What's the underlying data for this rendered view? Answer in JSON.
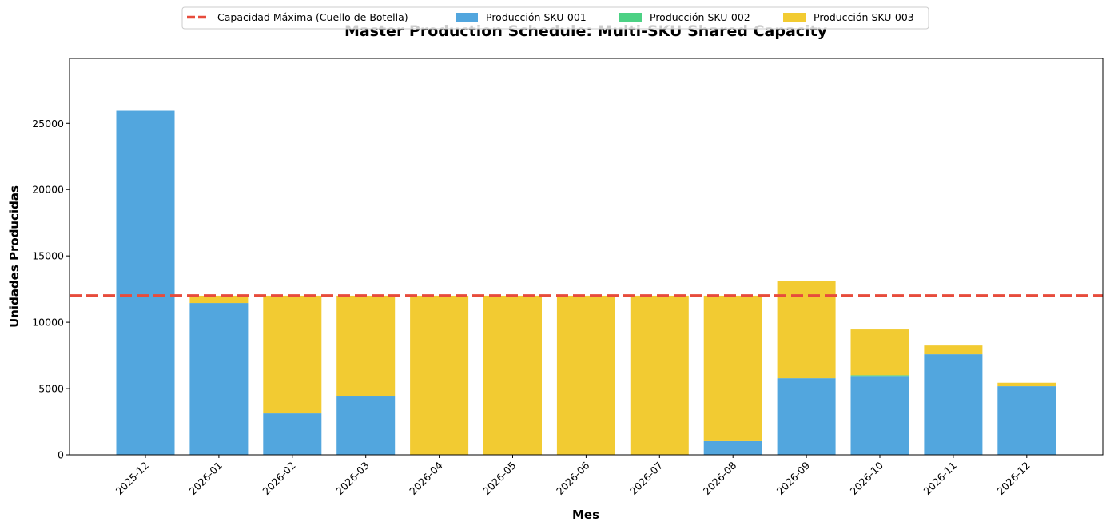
{
  "chart_data": {
    "type": "bar",
    "stacked": true,
    "title": "Master Production Schedule: Multi-SKU Shared Capacity",
    "xlabel": "Mes",
    "ylabel": "Unidades Producidas",
    "ylim": [
      0,
      29900
    ],
    "yticks": [
      0,
      5000,
      10000,
      15000,
      20000,
      25000
    ],
    "grid": false,
    "legend_position": "upper center (above plot)",
    "categories": [
      "2025-12",
      "2026-01",
      "2026-02",
      "2026-03",
      "2026-04",
      "2026-05",
      "2026-06",
      "2026-07",
      "2026-08",
      "2026-09",
      "2026-10",
      "2026-11",
      "2026-12"
    ],
    "series": [
      {
        "name": "Producción SKU-001",
        "color": "#52a6de",
        "values": [
          25950,
          11450,
          3130,
          4460,
          0,
          0,
          0,
          0,
          1030,
          5780,
          5950,
          7590,
          5180
        ]
      },
      {
        "name": "Producción SKU-002",
        "color": "#4cd184",
        "values": [
          0,
          0,
          0,
          0,
          0,
          0,
          0,
          0,
          0,
          0,
          60,
          0,
          0
        ]
      },
      {
        "name": "Producción SKU-003",
        "color": "#f2cb32",
        "values": [
          0,
          550,
          8870,
          7540,
          12000,
          12000,
          12000,
          12000,
          10970,
          7350,
          3450,
          660,
          260
        ]
      }
    ],
    "reference_lines": [
      {
        "name": "Capacidad Máxima (Cuello de Botella)",
        "y": 12000,
        "color": "#e74c3c",
        "style": "dashed"
      }
    ]
  },
  "legend": {
    "items": [
      {
        "label": "Capacidad Máxima (Cuello de Botella)",
        "kind": "line",
        "color": "#e74c3c"
      },
      {
        "label": "Producción SKU-001",
        "kind": "patch",
        "color": "#52a6de"
      },
      {
        "label": "Producción SKU-002",
        "kind": "patch",
        "color": "#4cd184"
      },
      {
        "label": "Producción SKU-003",
        "kind": "patch",
        "color": "#f2cb32"
      }
    ]
  }
}
